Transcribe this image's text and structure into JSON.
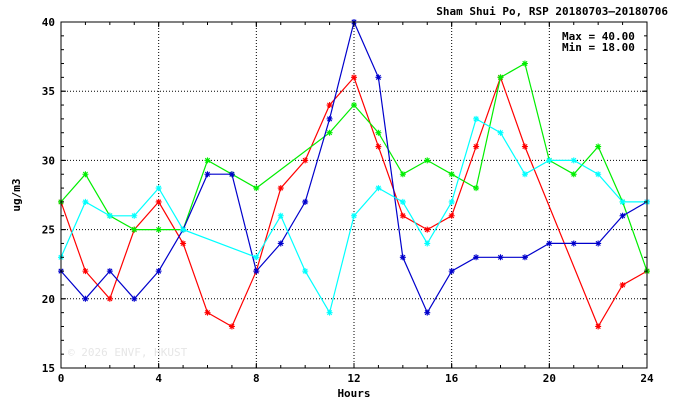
{
  "chart_data": {
    "type": "line",
    "title": "Sham Shui Po, RSP 20180703–20180706",
    "xlabel": "Hours",
    "ylabel": "ug/m3",
    "xlim": [
      0,
      24
    ],
    "ylim": [
      15,
      40
    ],
    "xticks": [
      0,
      4,
      8,
      12,
      16,
      20,
      24
    ],
    "yticks": [
      15,
      20,
      25,
      30,
      35,
      40
    ],
    "grid": true,
    "stats": {
      "max": "Max = 40.00",
      "min": "Min = 18.00"
    },
    "watermark": "© 2026  ENVF, HKUST",
    "series": [
      {
        "color": "#ff0000",
        "points": [
          [
            0,
            27
          ],
          [
            1,
            22
          ],
          [
            2,
            20
          ],
          [
            3,
            25
          ],
          [
            4,
            27
          ],
          [
            5,
            24
          ],
          [
            6,
            19
          ],
          [
            7,
            18
          ],
          [
            8,
            22
          ],
          [
            9,
            28
          ],
          [
            10,
            30
          ],
          [
            11,
            34
          ],
          [
            12,
            36
          ],
          [
            13,
            31
          ],
          [
            14,
            26
          ],
          [
            15,
            25
          ],
          [
            16,
            26
          ],
          [
            17,
            31
          ],
          [
            18,
            36
          ],
          [
            19,
            31
          ],
          [
            22,
            18
          ],
          [
            23,
            21
          ],
          [
            24,
            22
          ]
        ]
      },
      {
        "color": "#00ee00",
        "points": [
          [
            0,
            27
          ],
          [
            1,
            29
          ],
          [
            2,
            26
          ],
          [
            3,
            25
          ],
          [
            4,
            25
          ],
          [
            5,
            25
          ],
          [
            6,
            30
          ],
          [
            7,
            29
          ],
          [
            8,
            28
          ],
          [
            11,
            32
          ],
          [
            12,
            34
          ],
          [
            13,
            32
          ],
          [
            14,
            29
          ],
          [
            15,
            30
          ],
          [
            16,
            29
          ],
          [
            17,
            28
          ],
          [
            18,
            36
          ],
          [
            19,
            37
          ],
          [
            20,
            30
          ],
          [
            21,
            29
          ],
          [
            22,
            31
          ],
          [
            23,
            27
          ],
          [
            24,
            22
          ]
        ]
      },
      {
        "color": "#0000cc",
        "points": [
          [
            0,
            22
          ],
          [
            1,
            20
          ],
          [
            2,
            22
          ],
          [
            3,
            20
          ],
          [
            4,
            22
          ],
          [
            5,
            25
          ],
          [
            6,
            29
          ],
          [
            7,
            29
          ],
          [
            8,
            22
          ],
          [
            9,
            24
          ],
          [
            10,
            27
          ],
          [
            11,
            33
          ],
          [
            12,
            40
          ],
          [
            13,
            36
          ],
          [
            14,
            23
          ],
          [
            15,
            19
          ],
          [
            16,
            22
          ],
          [
            17,
            23
          ],
          [
            18,
            23
          ],
          [
            19,
            23
          ],
          [
            20,
            24
          ],
          [
            21,
            24
          ],
          [
            22,
            24
          ],
          [
            23,
            26
          ],
          [
            24,
            27
          ]
        ]
      },
      {
        "color": "#00ffff",
        "points": [
          [
            0,
            23
          ],
          [
            1,
            27
          ],
          [
            2,
            26
          ],
          [
            3,
            26
          ],
          [
            4,
            28
          ],
          [
            5,
            25
          ],
          [
            8,
            23
          ],
          [
            9,
            26
          ],
          [
            10,
            22
          ],
          [
            11,
            19
          ],
          [
            12,
            26
          ],
          [
            13,
            28
          ],
          [
            14,
            27
          ],
          [
            15,
            24
          ],
          [
            16,
            27
          ],
          [
            17,
            33
          ],
          [
            18,
            32
          ],
          [
            19,
            29
          ],
          [
            20,
            30
          ],
          [
            21,
            30
          ],
          [
            22,
            29
          ],
          [
            23,
            27
          ],
          [
            24,
            27
          ]
        ]
      }
    ]
  }
}
